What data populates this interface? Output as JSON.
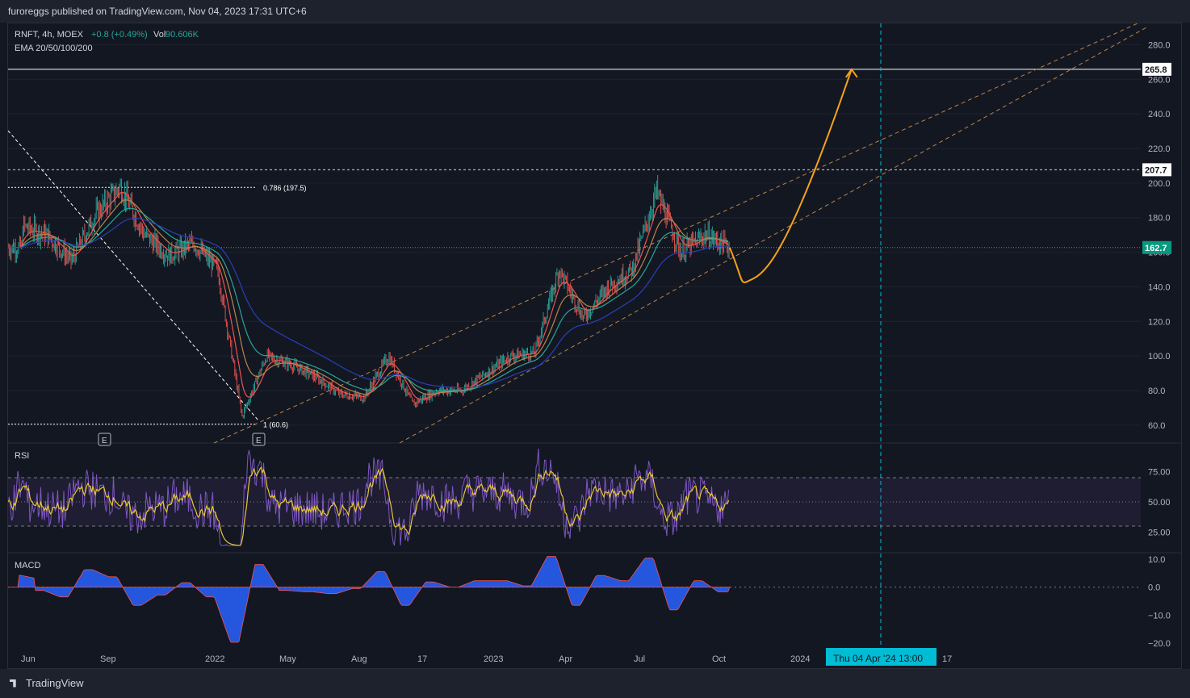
{
  "header": {
    "published": "furoreggs published on TradingView.com, Nov 04, 2023 17:31 UTC+6"
  },
  "footer": {
    "brand": "TradingView"
  },
  "legend": {
    "symbol": "RNFT, 4h, MOEX",
    "change": "+0.8 (+0.49%)",
    "vol_label": "Vol",
    "vol_value": "90.606K",
    "ema": "EMA 20/50/100/200"
  },
  "colors": {
    "background": "#131722",
    "grid": "#1f2330",
    "axis_text": "#b2b5be",
    "up": "#26a69a",
    "down": "#ef5350",
    "price_label": "#089981",
    "projection": "#f7a21b",
    "channel": "#b8864b",
    "rsi_line": "#7e57c2",
    "rsi_ma": "#e9c732",
    "macd_hist": "#2962ff",
    "macd_line": "#ef5350",
    "ema20": "#ef5350",
    "ema50": "#b8864b",
    "ema100": "#26a69a",
    "ema200": "#2a3fb8",
    "date_badge": "#00bcd4"
  },
  "chart_data": [
    {
      "type": "line",
      "panel": "price",
      "y_ticks": [
        "280.0",
        "260.0",
        "240.0",
        "220.0",
        "200.0",
        "180.0",
        "160.0",
        "140.0",
        "120.0",
        "100.0",
        "80.0",
        "60.0"
      ],
      "ylim": [
        52,
        290
      ],
      "x_ticks": [
        "Jun",
        "Sep",
        "2022",
        "May",
        "Aug",
        "17",
        "2023",
        "Apr",
        "Jul",
        "Oct",
        "2024",
        "17"
      ],
      "price_labels": {
        "target": "265.8",
        "resistance": "207.7",
        "current": "162.7"
      },
      "fib_labels": {
        "upper": "0.786 (197.5)",
        "lower": "1 (60.6)"
      },
      "fib_levels": [
        197.5,
        60.6
      ],
      "earnings_markers": [
        "E",
        "E"
      ],
      "date_badge": "Thu 04 Apr '24   13:00",
      "series": [
        {
          "values": [
            [
              "2021-06",
              175
            ],
            [
              "2021-07",
              170
            ],
            [
              "2021-08",
              155
            ],
            [
              "2021-09",
              182
            ],
            [
              "2021-10",
              198
            ],
            [
              "2021-11",
              170
            ],
            [
              "2021-12",
              158
            ],
            [
              "2022-01",
              165
            ],
            [
              "2022-02",
              150
            ],
            [
              "2022-03",
              65
            ],
            [
              "2022-04",
              100
            ],
            [
              "2022-05",
              95
            ],
            [
              "2022-06",
              88
            ],
            [
              "2022-07",
              78
            ],
            [
              "2022-08",
              76
            ],
            [
              "2022-09",
              100
            ],
            [
              "2022-10",
              72
            ],
            [
              "2022-11",
              80
            ],
            [
              "2022-12",
              80
            ],
            [
              "2023-01",
              90
            ],
            [
              "2023-02",
              100
            ],
            [
              "2023-03",
              102
            ],
            [
              "2023-04",
              150
            ],
            [
              "2023-05",
              122
            ],
            [
              "2023-06",
              140
            ],
            [
              "2023-07",
              150
            ],
            [
              "2023-08",
              195
            ],
            [
              "2023-09",
              160
            ],
            [
              "2023-10",
              170
            ],
            [
              "2023-11",
              162.7
            ]
          ]
        }
      ],
      "projection_points": [
        [
          "2023-11",
          162.7
        ],
        [
          "2023-12",
          145
        ],
        [
          "2024-01",
          170
        ],
        [
          "2024-04",
          265.8
        ]
      ]
    },
    {
      "type": "line",
      "panel": "RSI",
      "title": "RSI",
      "y_ticks": [
        "75.00",
        "50.00",
        "25.00"
      ],
      "ylim": [
        8,
        98
      ],
      "bands": [
        70,
        50,
        30
      ]
    },
    {
      "type": "bar",
      "panel": "MACD",
      "title": "MACD",
      "y_ticks": [
        "10.0",
        "0.0",
        "−10.0",
        "−20.0"
      ],
      "ylim": [
        -22,
        12
      ]
    }
  ]
}
